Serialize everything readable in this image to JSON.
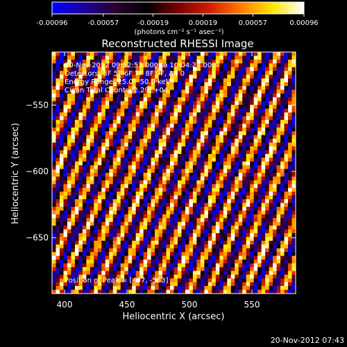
{
  "colorbar": {
    "tick_labels": [
      "-0.00096",
      "-0.00057",
      "-0.00019",
      "0.00019",
      "0.00057",
      "0.00096"
    ],
    "unit_label": "(photons cm⁻² s⁻¹ asec⁻²)",
    "colors": [
      "#0000ff",
      "#1a00a0",
      "#2a0030",
      "#000000",
      "#7a0000",
      "#d21c00",
      "#ff7a00",
      "#ffe600",
      "#ffffff"
    ]
  },
  "chart_data": {
    "type": "heatmap",
    "title": "Reconstructed RHESSI Image",
    "xlabel": "Heliocentric X (arcsec)",
    "ylabel": "Heliocentric Y (arcsec)",
    "xlim": [
      390,
      585
    ],
    "ylim": [
      -692,
      -510
    ],
    "x_ticks": [
      400,
      450,
      500,
      550
    ],
    "y_ticks": [
      -550,
      -600,
      -650
    ],
    "x_tick_labels": [
      "400",
      "450",
      "500",
      "550"
    ],
    "y_tick_labels": [
      "−550",
      "−600",
      "−650"
    ],
    "value_range": [
      -0.00096,
      0.00096
    ],
    "pattern": "diagonal modulation stripes",
    "annotations": [
      "20-Nov-2012 09:52:52.000 to 10:04:24.000",
      "Detectors: 3F 5F 6F 7F 8F 9F, A4 0",
      "Energy Range: 25.0 - 50.0 keV",
      "Clean     Total Counts: 2.29E+04"
    ],
    "peak_label": "Position of Peak = [497, -583]",
    "peak": [
      497,
      -583
    ]
  },
  "footer": {
    "timestamp": "20-Nov-2012 07:43"
  }
}
